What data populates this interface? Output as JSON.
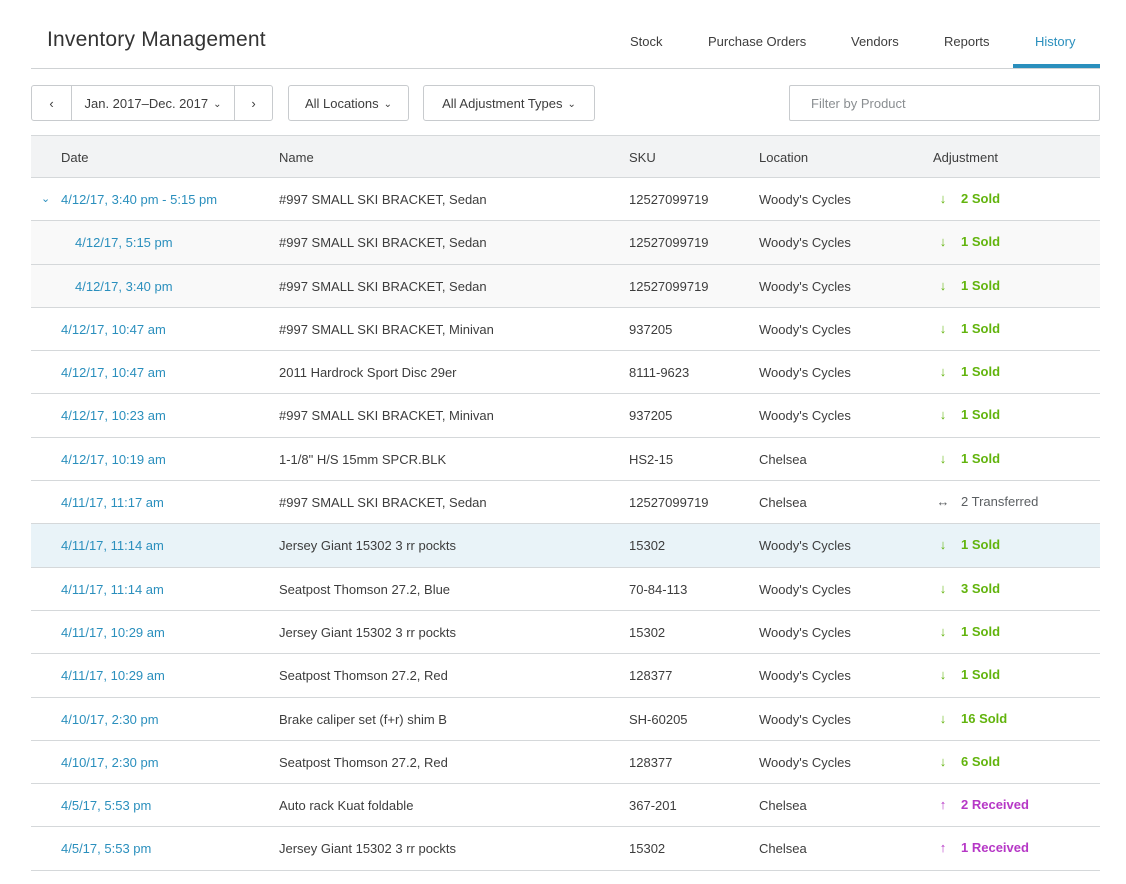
{
  "app": {
    "title": "Inventory Management"
  },
  "nav": {
    "items": [
      {
        "label": "Stock"
      },
      {
        "label": "Purchase Orders"
      },
      {
        "label": "Vendors"
      },
      {
        "label": "Reports"
      },
      {
        "label": "History"
      }
    ],
    "active": "History",
    "active_color": "#2a8fbd"
  },
  "toolbar": {
    "prev_icon": "chevron-left-icon",
    "next_icon": "chevron-right-icon",
    "date_range": "Jan. 2017–Dec. 2017",
    "locations": "All Locations",
    "adjustment_types": "All Adjustment Types",
    "filter_placeholder": "Filter by Product"
  },
  "table": {
    "headers": [
      "Date",
      "Name",
      "SKU",
      "Location",
      "Adjustment"
    ],
    "rows": [
      {
        "date": "4/12/17, 3:40 pm - 5:15 pm",
        "name": "#997 SMALL SKI BRACKET, Sedan",
        "sku": "12527099719",
        "location": "Woody's Cycles",
        "adjustment": "2 Sold",
        "type": "sold",
        "group": true
      },
      {
        "date": "4/12/17, 5:15 pm",
        "name": "#997 SMALL SKI BRACKET, Sedan",
        "sku": "12527099719",
        "location": "Woody's Cycles",
        "adjustment": "1 Sold",
        "type": "sold",
        "child": true
      },
      {
        "date": "4/12/17, 3:40 pm",
        "name": "#997 SMALL SKI BRACKET, Sedan",
        "sku": "12527099719",
        "location": "Woody's Cycles",
        "adjustment": "1 Sold",
        "type": "sold",
        "child": true
      },
      {
        "date": "4/12/17, 10:47 am",
        "name": "#997 SMALL SKI BRACKET, Minivan",
        "sku": "937205",
        "location": "Woody's Cycles",
        "adjustment": "1 Sold",
        "type": "sold"
      },
      {
        "date": "4/12/17, 10:47 am",
        "name": "2011 Hardrock Sport Disc 29er",
        "sku": "8111-9623",
        "location": "Woody's Cycles",
        "adjustment": "1 Sold",
        "type": "sold"
      },
      {
        "date": "4/12/17, 10:23 am",
        "name": "#997 SMALL SKI BRACKET, Minivan",
        "sku": "937205",
        "location": "Woody's Cycles",
        "adjustment": "1 Sold",
        "type": "sold"
      },
      {
        "date": "4/12/17, 10:19 am",
        "name": "1-1/8\" H/S 15mm SPCR.BLK",
        "sku": "HS2-15",
        "location": "Chelsea",
        "adjustment": "1 Sold",
        "type": "sold"
      },
      {
        "date": "4/11/17, 11:17 am",
        "name": "#997 SMALL SKI BRACKET, Sedan",
        "sku": "12527099719",
        "location": "Chelsea",
        "adjustment": "2 Transferred",
        "type": "transferred"
      },
      {
        "date": "4/11/17, 11:14 am",
        "name": "Jersey Giant 15302 3 rr pockts",
        "sku": "15302",
        "location": "Woody's Cycles",
        "adjustment": "1 Sold",
        "type": "sold",
        "highlight": true
      },
      {
        "date": "4/11/17, 11:14 am",
        "name": "Seatpost Thomson 27.2, Blue",
        "sku": "70-84-113",
        "location": "Woody's Cycles",
        "adjustment": "3 Sold",
        "type": "sold"
      },
      {
        "date": "4/11/17, 10:29 am",
        "name": "Jersey Giant 15302 3 rr pockts",
        "sku": "15302",
        "location": "Woody's Cycles",
        "adjustment": "1 Sold",
        "type": "sold"
      },
      {
        "date": "4/11/17, 10:29 am",
        "name": "Seatpost Thomson 27.2, Red",
        "sku": "128377",
        "location": "Woody's Cycles",
        "adjustment": "1 Sold",
        "type": "sold"
      },
      {
        "date": "4/10/17, 2:30 pm",
        "name": "Brake caliper set (f+r) shim B",
        "sku": "SH-60205",
        "location": "Woody's Cycles",
        "adjustment": "16 Sold",
        "type": "sold"
      },
      {
        "date": "4/10/17, 2:30 pm",
        "name": "Seatpost Thomson 27.2, Red",
        "sku": "128377",
        "location": "Woody's Cycles",
        "adjustment": "6 Sold",
        "type": "sold"
      },
      {
        "date": "4/5/17, 5:53 pm",
        "name": "Auto rack Kuat foldable",
        "sku": "367-201",
        "location": "Chelsea",
        "adjustment": "2 Received",
        "type": "received"
      },
      {
        "date": "4/5/17, 5:53 pm",
        "name": "Jersey Giant 15302 3 rr pockts",
        "sku": "15302",
        "location": "Chelsea",
        "adjustment": "1 Received",
        "type": "received"
      }
    ]
  },
  "colors": {
    "sold": "#62b40d",
    "received": "#b637c6",
    "transferred": "#5b5f62",
    "link": "#2a8fbd"
  }
}
